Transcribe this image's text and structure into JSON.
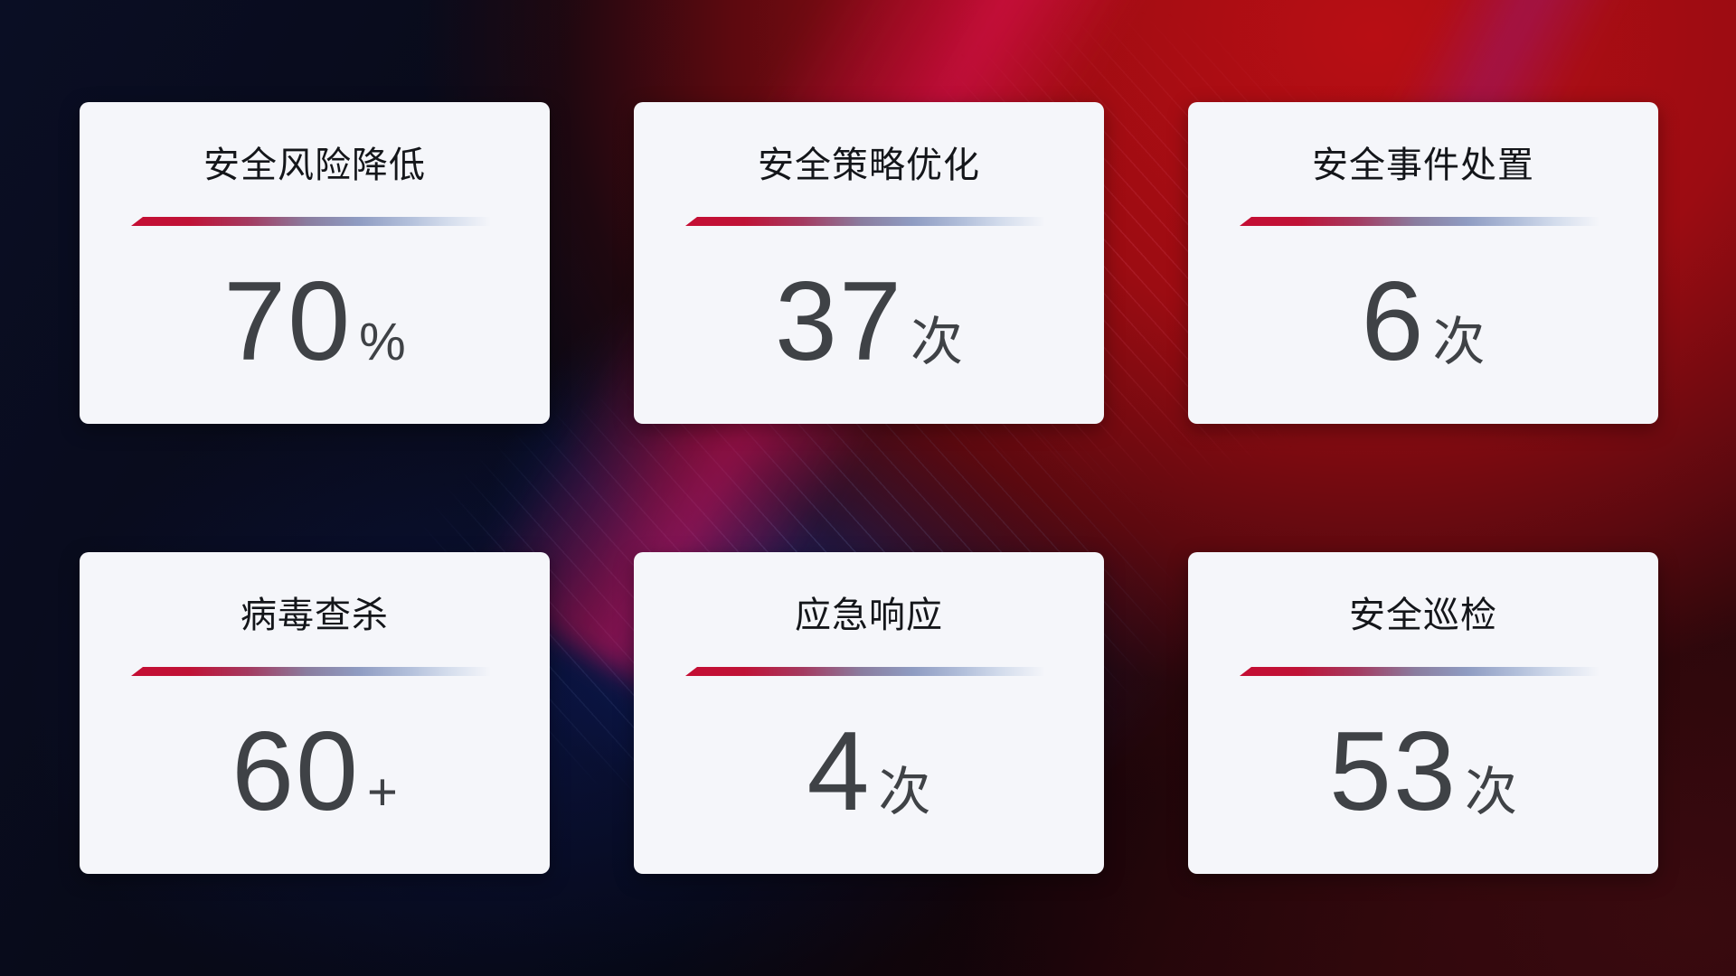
{
  "dashboard": {
    "cards": [
      {
        "title": "安全风险降低",
        "value": "70",
        "unit": "%"
      },
      {
        "title": "安全策略优化",
        "value": "37",
        "unit": "次"
      },
      {
        "title": "安全事件处置",
        "value": "6",
        "unit": "次"
      },
      {
        "title": "病毒查杀",
        "value": "60",
        "unit": "+"
      },
      {
        "title": "应急响应",
        "value": "4",
        "unit": "次"
      },
      {
        "title": "安全巡检",
        "value": "53",
        "unit": "次"
      }
    ],
    "colors": {
      "card_background": "#f5f6fa",
      "title_text": "#14161a",
      "value_text": "#3f4246",
      "divider_red": "#c40e34",
      "divider_slate": "#8a7d9f",
      "divider_light": "#d3dcec",
      "background_navy": "#0a0e24",
      "background_red": "#b80e14",
      "background_maroon": "#2e070c",
      "background_blue_glow": "#183096",
      "background_crimson_band": "#d20c46"
    }
  }
}
